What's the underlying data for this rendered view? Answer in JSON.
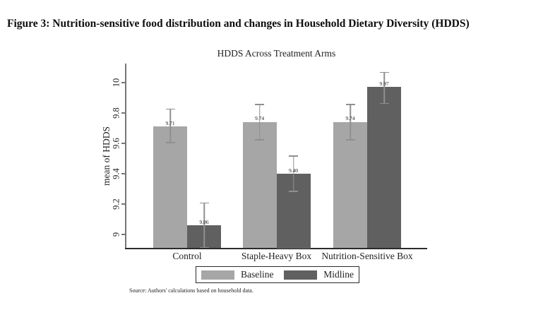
{
  "figure_title": "Figure 3: Nutrition-sensitive food distribution and changes in Household Dietary Diversity (HDDS)",
  "source_note": "Source: Authors' calculations based on household data.",
  "legend": {
    "items": [
      {
        "label": "Baseline",
        "color": "#a6a6a6"
      },
      {
        "label": "Midline",
        "color": "#606060"
      }
    ]
  },
  "chart_data": {
    "type": "bar",
    "title": "HDDS Across Treatment Arms",
    "xlabel": "",
    "ylabel": "mean of HDDS",
    "categories": [
      "Control",
      "Staple-Heavy Box",
      "Nutrition-Sensitive Box"
    ],
    "series": [
      {
        "name": "Baseline",
        "color": "#a6a6a6",
        "values": [
          9.71,
          9.74,
          9.74
        ],
        "ci_low": [
          9.6,
          9.62,
          9.62
        ],
        "ci_high": [
          9.83,
          9.86,
          9.86
        ]
      },
      {
        "name": "Midline",
        "color": "#606060",
        "values": [
          9.06,
          9.4,
          9.97
        ],
        "ci_low": [
          8.91,
          9.28,
          9.86
        ],
        "ci_high": [
          9.21,
          9.52,
          10.07
        ]
      }
    ],
    "value_label_decimals": 2,
    "y_ticks": [
      {
        "value": 9,
        "label": "9"
      },
      {
        "value": 9.2,
        "label": "9.2"
      },
      {
        "value": 9.4,
        "label": "9.4"
      },
      {
        "value": 9.6,
        "label": "9.6"
      },
      {
        "value": 9.8,
        "label": "9.8"
      },
      {
        "value": 10,
        "label": "10"
      }
    ],
    "ylim": [
      8.91,
      10.13
    ],
    "grid": false,
    "error_bars": true,
    "legend_position": "bottom"
  }
}
